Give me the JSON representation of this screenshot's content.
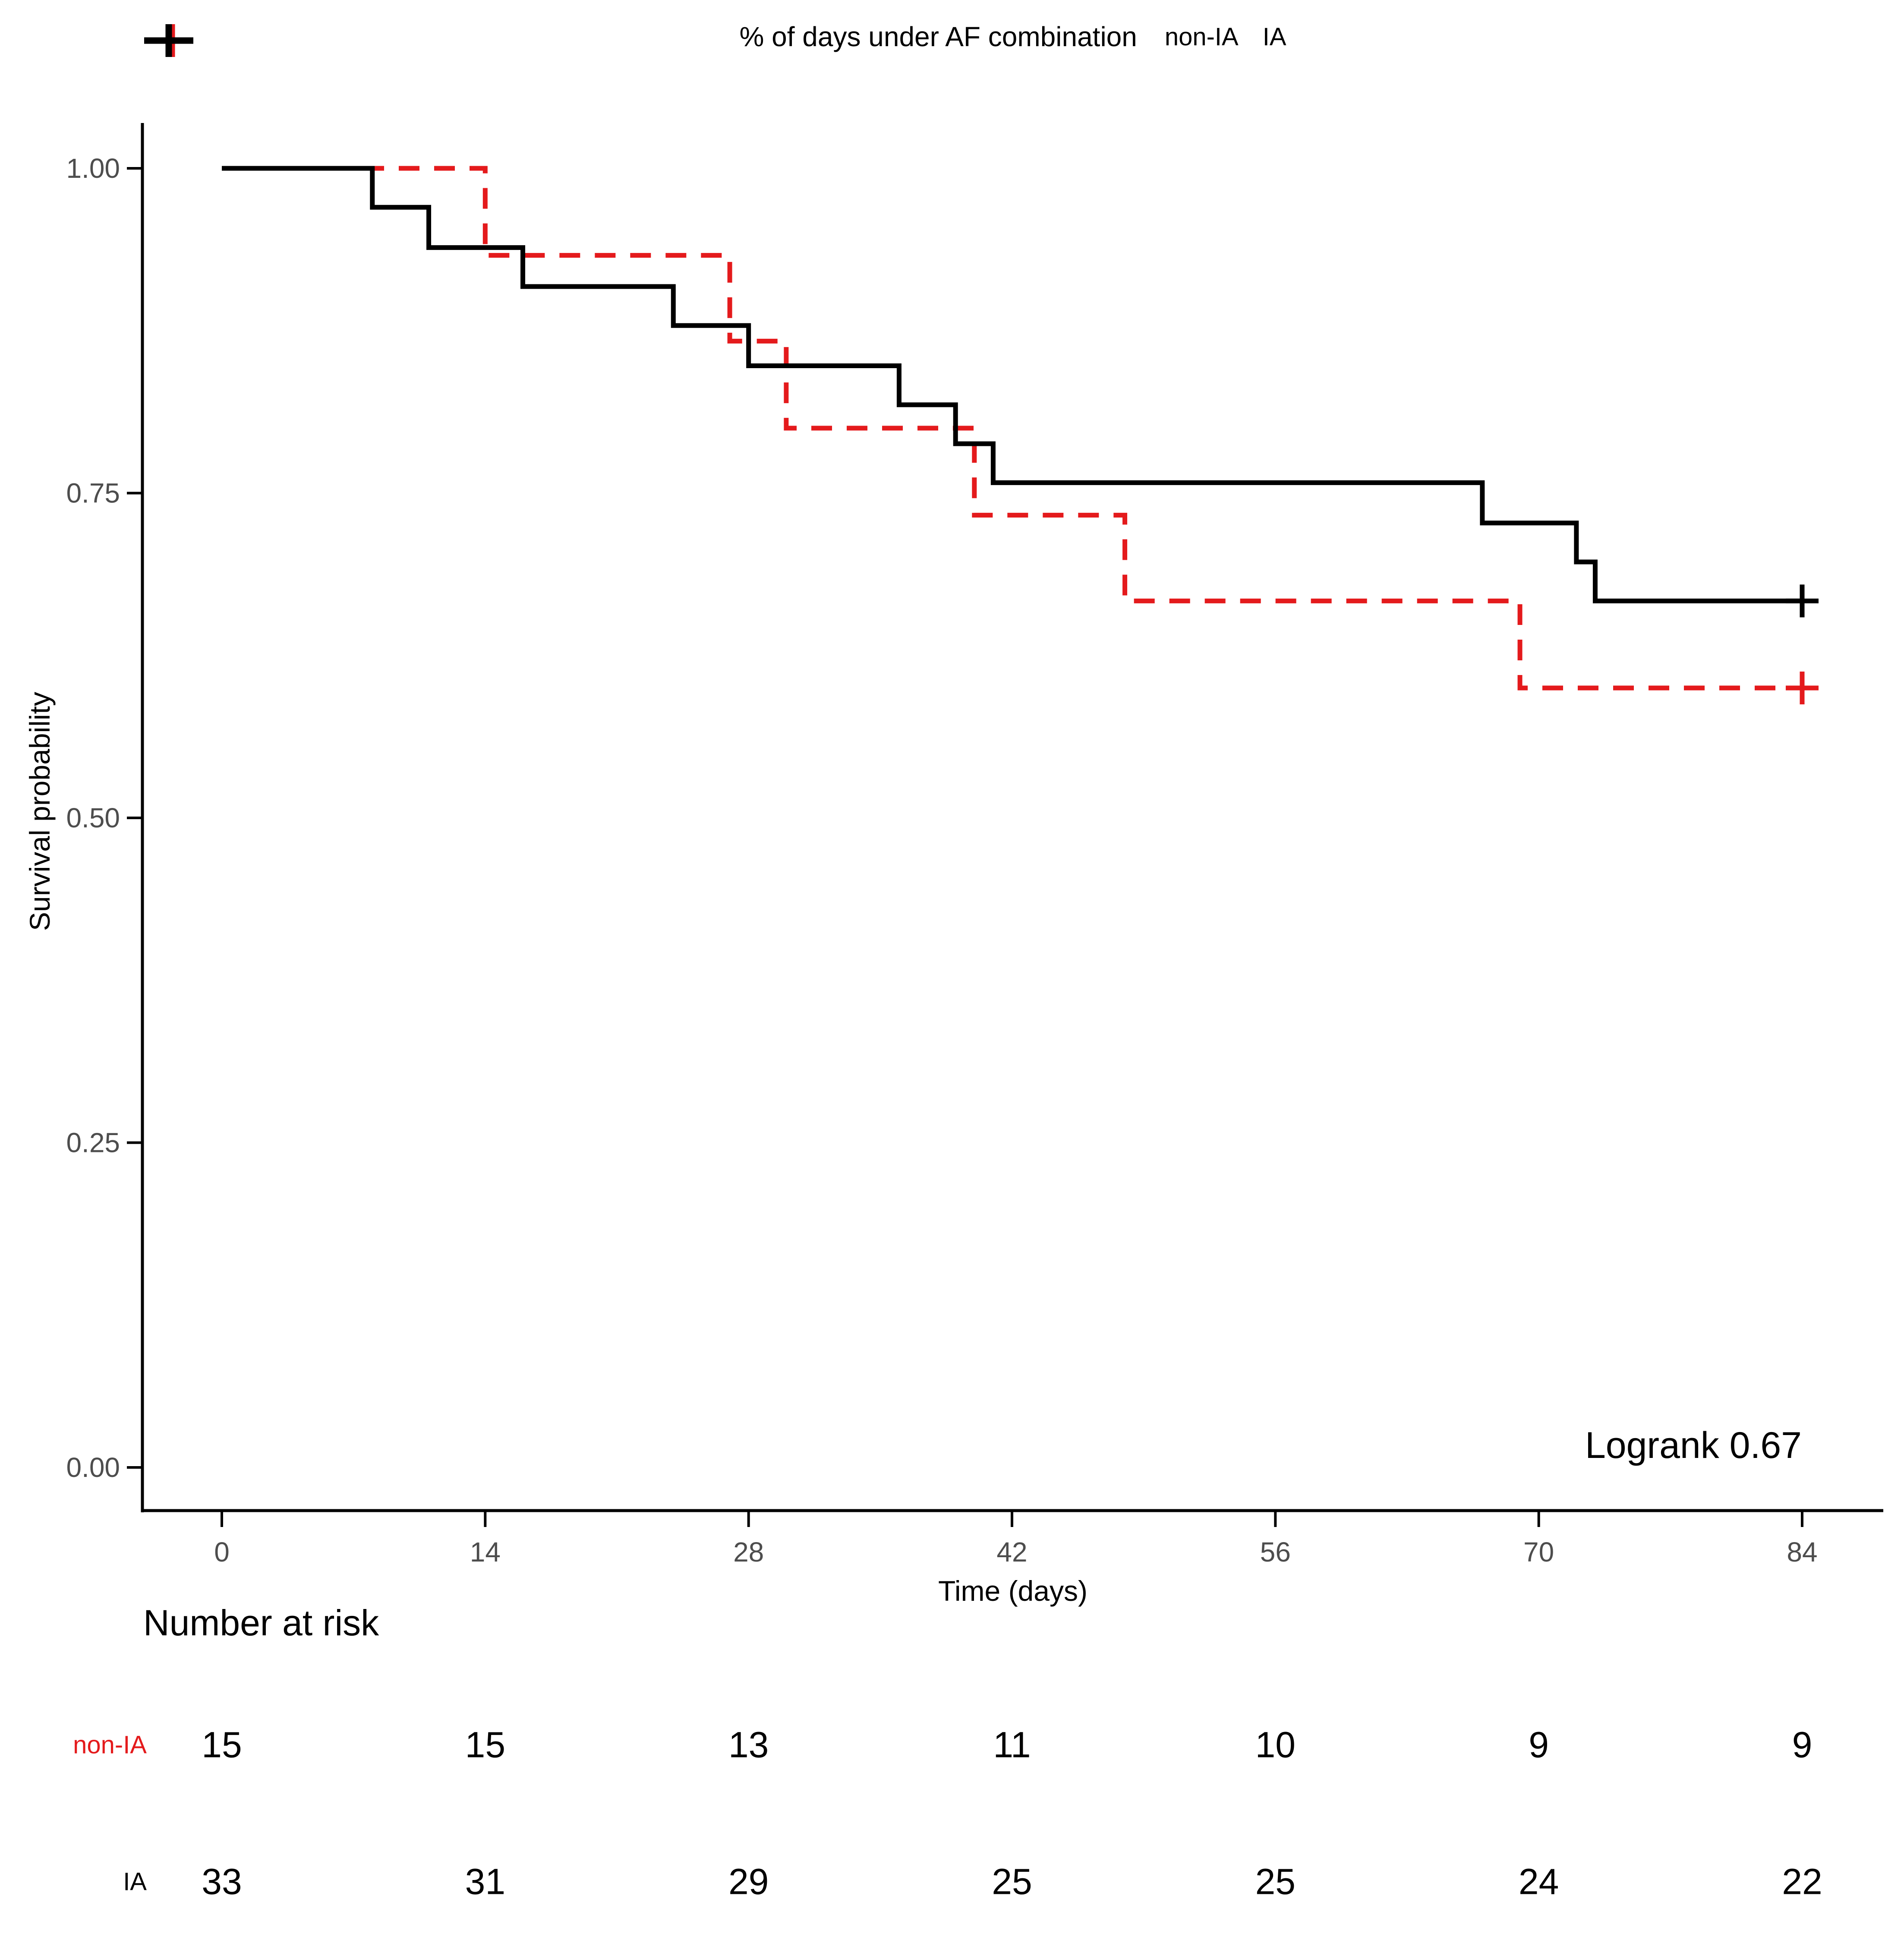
{
  "figure": {
    "legend": {
      "title": "% of days under AF combination",
      "items": [
        {
          "label": "non-IA",
          "color": "#E41A1C"
        },
        {
          "label": "IA",
          "color": "#000000"
        }
      ]
    },
    "ylabel": "Survival probability",
    "xlabel": "Time (days)",
    "annotation": "Logrank 0.67",
    "risk_header": "Number at risk"
  },
  "colors": {
    "non_ia": "#E41A1C",
    "ia": "#000000",
    "tick_text": "#4d4d4d",
    "axis": "#000000"
  },
  "chart_data": {
    "type": "line",
    "subtype": "kaplan-meier-step",
    "title": "% of days under AF combination",
    "xlabel": "Time (days)",
    "ylabel": "Survival probability",
    "xlim": [
      0,
      84
    ],
    "ylim": [
      0,
      1
    ],
    "grid": false,
    "legend_position": "top",
    "x_ticks": [
      0,
      14,
      28,
      42,
      56,
      70,
      84
    ],
    "y_ticks": [
      {
        "value": 1.0,
        "label": "1.00"
      },
      {
        "value": 0.75,
        "label": "0.75"
      },
      {
        "value": 0.5,
        "label": "0.50"
      },
      {
        "value": 0.25,
        "label": "0.25"
      },
      {
        "value": 0.0,
        "label": "0.00"
      }
    ],
    "series": [
      {
        "name": "non-IA",
        "color": "#E41A1C",
        "dashed": true,
        "steps": [
          [
            0,
            1.0
          ],
          [
            14,
            0.933
          ],
          [
            27,
            0.867
          ],
          [
            30,
            0.8
          ],
          [
            40,
            0.733
          ],
          [
            48,
            0.667
          ],
          [
            69,
            0.6
          ]
        ],
        "end_time": 84,
        "censor_times": [
          84
        ],
        "censor_value": 0.6
      },
      {
        "name": "IA",
        "color": "#000000",
        "dashed": false,
        "steps": [
          [
            0,
            1.0
          ],
          [
            8,
            0.97
          ],
          [
            11,
            0.939
          ],
          [
            16,
            0.909
          ],
          [
            24,
            0.879
          ],
          [
            28,
            0.848
          ],
          [
            36,
            0.818
          ],
          [
            39,
            0.788
          ],
          [
            41,
            0.758
          ],
          [
            67,
            0.727
          ],
          [
            72,
            0.697
          ],
          [
            73,
            0.667
          ]
        ],
        "end_time": 84,
        "censor_times": [
          84
        ],
        "censor_value": 0.667
      }
    ],
    "annotation": "Logrank 0.67",
    "risk_table": {
      "title": "Number at risk",
      "times": [
        0,
        14,
        28,
        42,
        56,
        70,
        84
      ],
      "rows": [
        {
          "name": "non-IA",
          "color": "#E41A1C",
          "values": [
            15,
            15,
            13,
            11,
            10,
            9,
            9
          ]
        },
        {
          "name": "IA",
          "color": "#000000",
          "values": [
            33,
            31,
            29,
            25,
            25,
            24,
            22
          ]
        }
      ]
    }
  }
}
